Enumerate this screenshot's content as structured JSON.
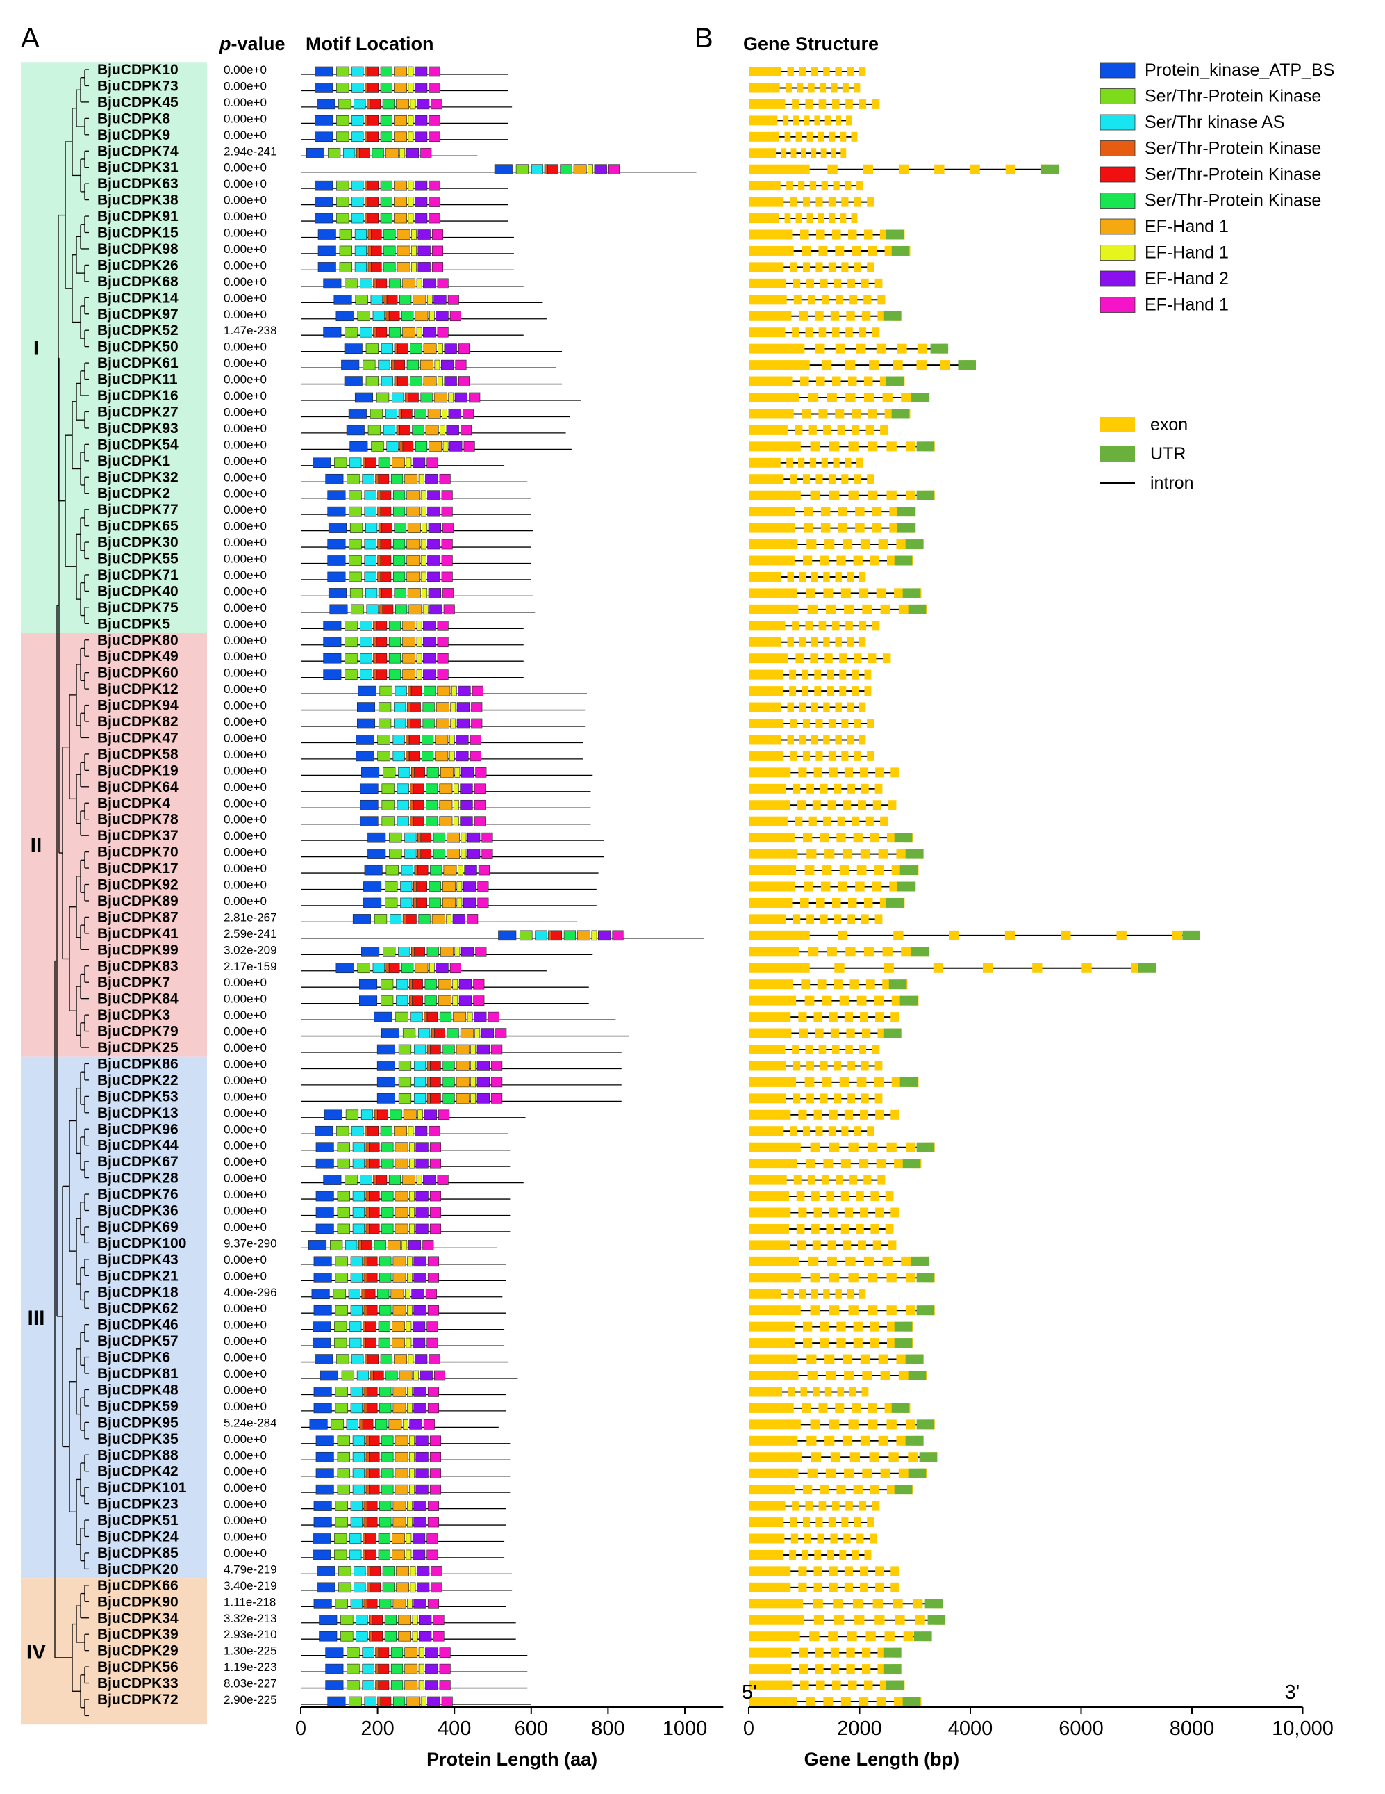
{
  "panel_labels": {
    "a": "A",
    "b": "B"
  },
  "headers": {
    "pvalue_prefix": "p",
    "pvalue_suffix": "-value",
    "motif_location": "Motif Location",
    "gene_structure": "Gene Structure"
  },
  "groups": [
    {
      "label": "I",
      "color": "#ccf5e0",
      "from": 0,
      "to": 34
    },
    {
      "label": "II",
      "color": "#f6cccc",
      "from": 35,
      "to": 60
    },
    {
      "label": "III",
      "color": "#cfe0f6",
      "from": 61,
      "to": 92
    },
    {
      "label": "IV",
      "color": "#f9d9bd",
      "from": 93,
      "to": 101
    }
  ],
  "legend_motifs": [
    {
      "label": "Protein_kinase_ATP_BS",
      "color": "#0b50e6"
    },
    {
      "label": "Ser/Thr-Protein Kinase",
      "color": "#7ddb1c"
    },
    {
      "label": "Ser/Thr kinase AS",
      "color": "#17e6f0"
    },
    {
      "label": "Ser/Thr-Protein Kinase",
      "color": "#e65c10"
    },
    {
      "label": "Ser/Thr-Protein Kinase",
      "color": "#f01010"
    },
    {
      "label": "Ser/Thr-Protein Kinase",
      "color": "#17e650"
    },
    {
      "label": "EF-Hand 1",
      "color": "#f5a80f"
    },
    {
      "label": "EF-Hand 1",
      "color": "#e6f51c"
    },
    {
      "label": "EF-Hand 2",
      "color": "#8a10f0"
    },
    {
      "label": "EF-Hand 1",
      "color": "#f514c8"
    }
  ],
  "legend_structure": [
    {
      "label": "exon",
      "color": "#ffcc00",
      "kind": "box"
    },
    {
      "label": "UTR",
      "color": "#6ab03c",
      "kind": "box"
    },
    {
      "label": "intron",
      "color": "#000000",
      "kind": "line"
    }
  ],
  "protein_axis": {
    "label": "Protein Length (aa)",
    "min": 0,
    "max": 1100,
    "ticks": [
      0,
      200,
      400,
      600,
      800,
      1000
    ]
  },
  "gene_axis": {
    "label": "Gene Length (bp)",
    "min": 0,
    "max": 10000,
    "ticks": [
      0,
      2000,
      4000,
      6000,
      8000
    ],
    "last_tick": "10,000",
    "five_prime": "5'",
    "three_prime": "3'"
  },
  "genes": [
    {
      "name": "BjuCDPK10",
      "p": "0.00e+0",
      "len": 540,
      "gene_len": 2100
    },
    {
      "name": "BjuCDPK73",
      "p": "0.00e+0",
      "len": 540,
      "gene_len": 2000
    },
    {
      "name": "BjuCDPK45",
      "p": "0.00e+0",
      "len": 550,
      "gene_len": 2350
    },
    {
      "name": "BjuCDPK8",
      "p": "0.00e+0",
      "len": 540,
      "gene_len": 1850
    },
    {
      "name": "BjuCDPK9",
      "p": "0.00e+0",
      "len": 540,
      "gene_len": 1950
    },
    {
      "name": "BjuCDPK74",
      "p": "2.94e-241",
      "len": 460,
      "gene_len": 1750
    },
    {
      "name": "BjuCDPK31",
      "p": "0.00e+0",
      "len": 1030,
      "gene_len": 5600
    },
    {
      "name": "BjuCDPK63",
      "p": "0.00e+0",
      "len": 540,
      "gene_len": 2050
    },
    {
      "name": "BjuCDPK38",
      "p": "0.00e+0",
      "len": 540,
      "gene_len": 2250
    },
    {
      "name": "BjuCDPK91",
      "p": "0.00e+0",
      "len": 540,
      "gene_len": 1950
    },
    {
      "name": "BjuCDPK15",
      "p": "0.00e+0",
      "len": 555,
      "gene_len": 2800
    },
    {
      "name": "BjuCDPK98",
      "p": "0.00e+0",
      "len": 555,
      "gene_len": 2900
    },
    {
      "name": "BjuCDPK26",
      "p": "0.00e+0",
      "len": 555,
      "gene_len": 2250
    },
    {
      "name": "BjuCDPK68",
      "p": "0.00e+0",
      "len": 580,
      "gene_len": 2400
    },
    {
      "name": "BjuCDPK14",
      "p": "0.00e+0",
      "len": 630,
      "gene_len": 2450
    },
    {
      "name": "BjuCDPK97",
      "p": "0.00e+0",
      "len": 640,
      "gene_len": 2750
    },
    {
      "name": "BjuCDPK52",
      "p": "1.47e-238",
      "len": 580,
      "gene_len": 2350
    },
    {
      "name": "BjuCDPK50",
      "p": "0.00e+0",
      "len": 680,
      "gene_len": 3600
    },
    {
      "name": "BjuCDPK61",
      "p": "0.00e+0",
      "len": 665,
      "gene_len": 4100
    },
    {
      "name": "BjuCDPK11",
      "p": "0.00e+0",
      "len": 680,
      "gene_len": 2800
    },
    {
      "name": "BjuCDPK16",
      "p": "0.00e+0",
      "len": 730,
      "gene_len": 3250
    },
    {
      "name": "BjuCDPK27",
      "p": "0.00e+0",
      "len": 700,
      "gene_len": 2900
    },
    {
      "name": "BjuCDPK93",
      "p": "0.00e+0",
      "len": 690,
      "gene_len": 2500
    },
    {
      "name": "BjuCDPK54",
      "p": "0.00e+0",
      "len": 705,
      "gene_len": 3350
    },
    {
      "name": "BjuCDPK1",
      "p": "0.00e+0",
      "len": 530,
      "gene_len": 2050
    },
    {
      "name": "BjuCDPK32",
      "p": "0.00e+0",
      "len": 590,
      "gene_len": 2250
    },
    {
      "name": "BjuCDPK2",
      "p": "0.00e+0",
      "len": 600,
      "gene_len": 3350
    },
    {
      "name": "BjuCDPK77",
      "p": "0.00e+0",
      "len": 600,
      "gene_len": 3000
    },
    {
      "name": "BjuCDPK65",
      "p": "0.00e+0",
      "len": 605,
      "gene_len": 3000
    },
    {
      "name": "BjuCDPK30",
      "p": "0.00e+0",
      "len": 600,
      "gene_len": 3150
    },
    {
      "name": "BjuCDPK55",
      "p": "0.00e+0",
      "len": 600,
      "gene_len": 2950
    },
    {
      "name": "BjuCDPK71",
      "p": "0.00e+0",
      "len": 600,
      "gene_len": 2100
    },
    {
      "name": "BjuCDPK40",
      "p": "0.00e+0",
      "len": 605,
      "gene_len": 3100
    },
    {
      "name": "BjuCDPK75",
      "p": "0.00e+0",
      "len": 610,
      "gene_len": 3200
    },
    {
      "name": "BjuCDPK5",
      "p": "0.00e+0",
      "len": 580,
      "gene_len": 2350
    },
    {
      "name": "BjuCDPK80",
      "p": "0.00e+0",
      "len": 580,
      "gene_len": 2100
    },
    {
      "name": "BjuCDPK49",
      "p": "0.00e+0",
      "len": 580,
      "gene_len": 2550
    },
    {
      "name": "BjuCDPK60",
      "p": "0.00e+0",
      "len": 580,
      "gene_len": 2200
    },
    {
      "name": "BjuCDPK12",
      "p": "0.00e+0",
      "len": 745,
      "gene_len": 2200
    },
    {
      "name": "BjuCDPK94",
      "p": "0.00e+0",
      "len": 740,
      "gene_len": 2100
    },
    {
      "name": "BjuCDPK82",
      "p": "0.00e+0",
      "len": 740,
      "gene_len": 2250
    },
    {
      "name": "BjuCDPK47",
      "p": "0.00e+0",
      "len": 735,
      "gene_len": 2100
    },
    {
      "name": "BjuCDPK58",
      "p": "0.00e+0",
      "len": 735,
      "gene_len": 2250
    },
    {
      "name": "BjuCDPK19",
      "p": "0.00e+0",
      "len": 760,
      "gene_len": 2700
    },
    {
      "name": "BjuCDPK64",
      "p": "0.00e+0",
      "len": 755,
      "gene_len": 2400
    },
    {
      "name": "BjuCDPK4",
      "p": "0.00e+0",
      "len": 755,
      "gene_len": 2650
    },
    {
      "name": "BjuCDPK78",
      "p": "0.00e+0",
      "len": 755,
      "gene_len": 2500
    },
    {
      "name": "BjuCDPK37",
      "p": "0.00e+0",
      "len": 790,
      "gene_len": 2950
    },
    {
      "name": "BjuCDPK70",
      "p": "0.00e+0",
      "len": 790,
      "gene_len": 3150
    },
    {
      "name": "BjuCDPK17",
      "p": "0.00e+0",
      "len": 775,
      "gene_len": 3050
    },
    {
      "name": "BjuCDPK92",
      "p": "0.00e+0",
      "len": 770,
      "gene_len": 3000
    },
    {
      "name": "BjuCDPK89",
      "p": "0.00e+0",
      "len": 770,
      "gene_len": 2800
    },
    {
      "name": "BjuCDPK87",
      "p": "2.81e-267",
      "len": 720,
      "gene_len": 2400
    },
    {
      "name": "BjuCDPK41",
      "p": "2.59e-241",
      "len": 1050,
      "gene_len": 8150
    },
    {
      "name": "BjuCDPK99",
      "p": "3.02e-209",
      "len": 760,
      "gene_len": 3250
    },
    {
      "name": "BjuCDPK83",
      "p": "2.17e-159",
      "len": 640,
      "gene_len": 7350
    },
    {
      "name": "BjuCDPK7",
      "p": "0.00e+0",
      "len": 750,
      "gene_len": 2850
    },
    {
      "name": "BjuCDPK84",
      "p": "0.00e+0",
      "len": 750,
      "gene_len": 3050
    },
    {
      "name": "BjuCDPK3",
      "p": "0.00e+0",
      "len": 820,
      "gene_len": 2700
    },
    {
      "name": "BjuCDPK79",
      "p": "0.00e+0",
      "len": 855,
      "gene_len": 2750
    },
    {
      "name": "BjuCDPK25",
      "p": "0.00e+0",
      "len": 835,
      "gene_len": 2350
    },
    {
      "name": "BjuCDPK86",
      "p": "0.00e+0",
      "len": 835,
      "gene_len": 2400
    },
    {
      "name": "BjuCDPK22",
      "p": "0.00e+0",
      "len": 835,
      "gene_len": 3050
    },
    {
      "name": "BjuCDPK53",
      "p": "0.00e+0",
      "len": 835,
      "gene_len": 2400
    },
    {
      "name": "BjuCDPK13",
      "p": "0.00e+0",
      "len": 585,
      "gene_len": 2700
    },
    {
      "name": "BjuCDPK96",
      "p": "0.00e+0",
      "len": 540,
      "gene_len": 2250
    },
    {
      "name": "BjuCDPK44",
      "p": "0.00e+0",
      "len": 545,
      "gene_len": 3350
    },
    {
      "name": "BjuCDPK67",
      "p": "0.00e+0",
      "len": 545,
      "gene_len": 3100
    },
    {
      "name": "BjuCDPK28",
      "p": "0.00e+0",
      "len": 580,
      "gene_len": 2450
    },
    {
      "name": "BjuCDPK76",
      "p": "0.00e+0",
      "len": 545,
      "gene_len": 2600
    },
    {
      "name": "BjuCDPK36",
      "p": "0.00e+0",
      "len": 545,
      "gene_len": 2700
    },
    {
      "name": "BjuCDPK69",
      "p": "0.00e+0",
      "len": 545,
      "gene_len": 2600
    },
    {
      "name": "BjuCDPK100",
      "p": "9.37e-290",
      "len": 510,
      "gene_len": 2650
    },
    {
      "name": "BjuCDPK43",
      "p": "0.00e+0",
      "len": 535,
      "gene_len": 3250
    },
    {
      "name": "BjuCDPK21",
      "p": "0.00e+0",
      "len": 535,
      "gene_len": 3350
    },
    {
      "name": "BjuCDPK18",
      "p": "4.00e-296",
      "len": 525,
      "gene_len": 2100
    },
    {
      "name": "BjuCDPK62",
      "p": "0.00e+0",
      "len": 535,
      "gene_len": 3350
    },
    {
      "name": "BjuCDPK46",
      "p": "0.00e+0",
      "len": 530,
      "gene_len": 2950
    },
    {
      "name": "BjuCDPK57",
      "p": "0.00e+0",
      "len": 530,
      "gene_len": 2950
    },
    {
      "name": "BjuCDPK6",
      "p": "0.00e+0",
      "len": 540,
      "gene_len": 3150
    },
    {
      "name": "BjuCDPK81",
      "p": "0.00e+0",
      "len": 565,
      "gene_len": 3200
    },
    {
      "name": "BjuCDPK48",
      "p": "0.00e+0",
      "len": 535,
      "gene_len": 2150
    },
    {
      "name": "BjuCDPK59",
      "p": "0.00e+0",
      "len": 535,
      "gene_len": 2900
    },
    {
      "name": "BjuCDPK95",
      "p": "5.24e-284",
      "len": 515,
      "gene_len": 3350
    },
    {
      "name": "BjuCDPK35",
      "p": "0.00e+0",
      "len": 545,
      "gene_len": 3150
    },
    {
      "name": "BjuCDPK88",
      "p": "0.00e+0",
      "len": 545,
      "gene_len": 3400
    },
    {
      "name": "BjuCDPK42",
      "p": "0.00e+0",
      "len": 545,
      "gene_len": 3200
    },
    {
      "name": "BjuCDPK101",
      "p": "0.00e+0",
      "len": 545,
      "gene_len": 2950
    },
    {
      "name": "BjuCDPK23",
      "p": "0.00e+0",
      "len": 535,
      "gene_len": 2350
    },
    {
      "name": "BjuCDPK51",
      "p": "0.00e+0",
      "len": 535,
      "gene_len": 2250
    },
    {
      "name": "BjuCDPK24",
      "p": "0.00e+0",
      "len": 530,
      "gene_len": 2300
    },
    {
      "name": "BjuCDPK85",
      "p": "0.00e+0",
      "len": 530,
      "gene_len": 2200
    },
    {
      "name": "BjuCDPK20",
      "p": "4.79e-219",
      "len": 550,
      "gene_len": 2700
    },
    {
      "name": "BjuCDPK66",
      "p": "3.40e-219",
      "len": 550,
      "gene_len": 2700
    },
    {
      "name": "BjuCDPK90",
      "p": "1.11e-218",
      "len": 535,
      "gene_len": 3500
    },
    {
      "name": "BjuCDPK34",
      "p": "3.32e-213",
      "len": 560,
      "gene_len": 3550
    },
    {
      "name": "BjuCDPK39",
      "p": "2.93e-210",
      "len": 560,
      "gene_len": 3300
    },
    {
      "name": "BjuCDPK29",
      "p": "1.30e-225",
      "len": 590,
      "gene_len": 2750
    },
    {
      "name": "BjuCDPK56",
      "p": "1.19e-223",
      "len": 590,
      "gene_len": 2750
    },
    {
      "name": "BjuCDPK33",
      "p": "8.03e-227",
      "len": 590,
      "gene_len": 2800
    },
    {
      "name": "BjuCDPK72",
      "p": "2.90e-225",
      "len": 600,
      "gene_len": 3100
    }
  ]
}
